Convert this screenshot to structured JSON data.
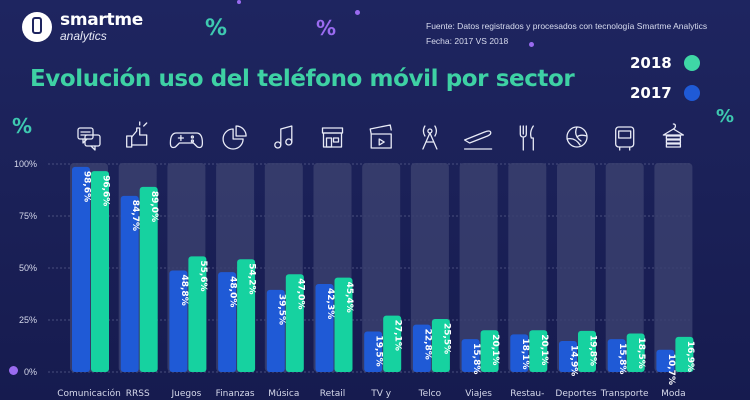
{
  "brand": {
    "name": "smartme",
    "sub": "analytics"
  },
  "source": {
    "line1": "Fuente: Datos registrados y procesados con tecnología Smartme Analytics",
    "line2": "Fecha:  2017 VS 2018"
  },
  "decorations": {
    "percent_symbol": "%"
  },
  "colors": {
    "series_2017": "#1f5ad6",
    "series_2018": "#16d2a0",
    "track": "#3a3f6e",
    "title": "#3ed1a4",
    "accent_purple": "#9a6bf0"
  },
  "chart_data": {
    "type": "bar",
    "title": "Evolución uso del teléfono móvil por sector",
    "xlabel": "",
    "ylabel": "",
    "ylim": [
      0,
      100
    ],
    "yticks": [
      0,
      25,
      50,
      75,
      100
    ],
    "ytick_labels": [
      "0%",
      "25%",
      "50%",
      "75%",
      "100%"
    ],
    "grid": true,
    "legend": "top-right",
    "categories": [
      "Comunicación",
      "RRSS",
      "Juegos",
      "Finanzas",
      "Música",
      "Retail",
      "TV y",
      "Telco",
      "Viajes",
      "Restau-",
      "Deportes",
      "Transporte",
      "Moda"
    ],
    "category_icons": [
      "chat-bubbles-icon",
      "thumbs-up-icon",
      "gamepad-icon",
      "pie-chart-icon",
      "music-note-icon",
      "store-icon",
      "clapperboard-icon",
      "antenna-tower-icon",
      "airplane-takeoff-icon",
      "fork-knife-icon",
      "volleyball-icon",
      "bus-icon",
      "clothes-hanger-icon"
    ],
    "series": [
      {
        "name": "2017",
        "values": [
          98.6,
          84.7,
          48.8,
          48.0,
          39.5,
          42.3,
          19.5,
          22.8,
          15.8,
          18.1,
          14.9,
          15.8,
          10.7
        ],
        "labels": [
          "98,6%",
          "84,7%",
          "48,8%",
          "48,0%",
          "39,5%",
          "42,3%",
          "19,5%",
          "22,8%",
          "15,8%",
          "18,1%",
          "14,9%",
          "15,8%",
          "10,7%"
        ]
      },
      {
        "name": "2018",
        "values": [
          96.6,
          89.0,
          55.6,
          54.2,
          47.0,
          45.4,
          27.1,
          25.5,
          20.1,
          20.1,
          19.8,
          18.5,
          16.9
        ],
        "labels": [
          "96,6%",
          "89,0%",
          "55,6%",
          "54,2%",
          "47,0%",
          "45,4%",
          "27,1%",
          "25,5%",
          "20,1%",
          "20,1%",
          "19,8%",
          "18,5%",
          "16,9%"
        ]
      }
    ],
    "legend_entries": [
      "2018",
      "2017"
    ]
  }
}
